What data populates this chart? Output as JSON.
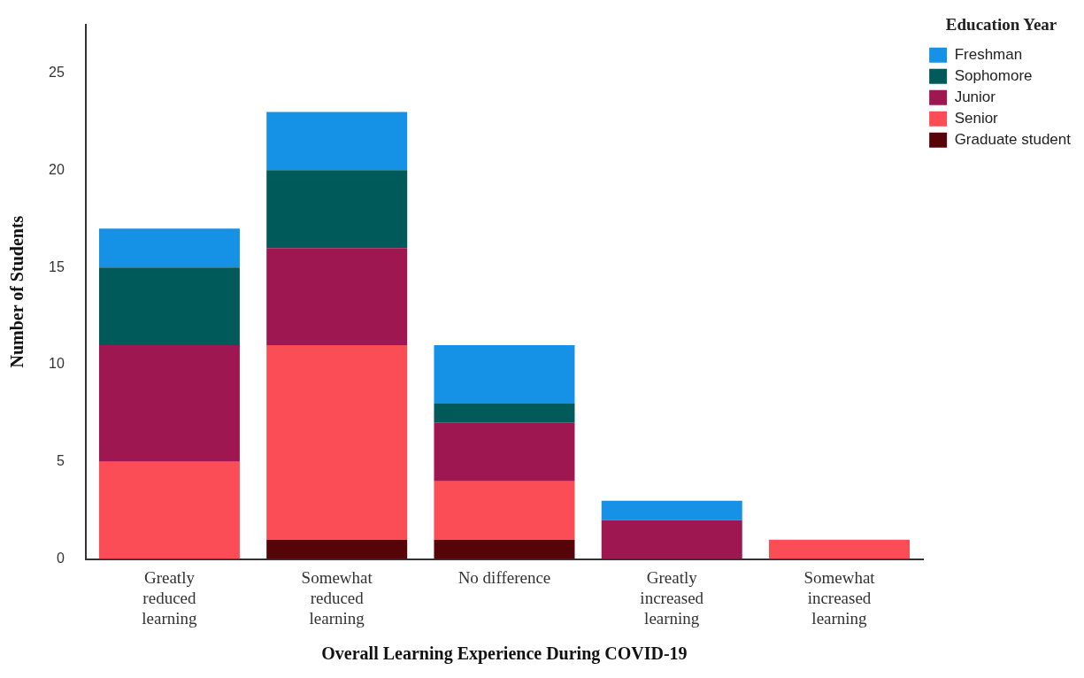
{
  "chart_data": {
    "type": "bar",
    "stacked": true,
    "xlabel": "Overall Learning Experience During COVID-19",
    "ylabel": "Number of Students",
    "legend_title": "Education Year",
    "legend": "top right",
    "grid": false,
    "categories": [
      "Greatly reduced learning",
      "Somewhat reduced learning",
      "No difference",
      "Greatly increased learning",
      "Somewhat increased learning"
    ],
    "ylim": [
      0,
      27.5
    ],
    "yticks": [
      0,
      5,
      10,
      15,
      20,
      25
    ],
    "series": [
      {
        "name": "Graduate student",
        "color": "#570408",
        "values": [
          0,
          1,
          1,
          0,
          0
        ]
      },
      {
        "name": "Senior",
        "color": "#fa4d56",
        "values": [
          5,
          10,
          3,
          0,
          1
        ]
      },
      {
        "name": "Junior",
        "color": "#9e1750",
        "values": [
          6,
          5,
          3,
          2,
          0
        ]
      },
      {
        "name": "Sophomore",
        "color": "#005a5a",
        "values": [
          4,
          4,
          1,
          0,
          0
        ]
      },
      {
        "name": "Freshman",
        "color": "#1591e6",
        "values": [
          2,
          3,
          3,
          1,
          0
        ]
      }
    ]
  }
}
